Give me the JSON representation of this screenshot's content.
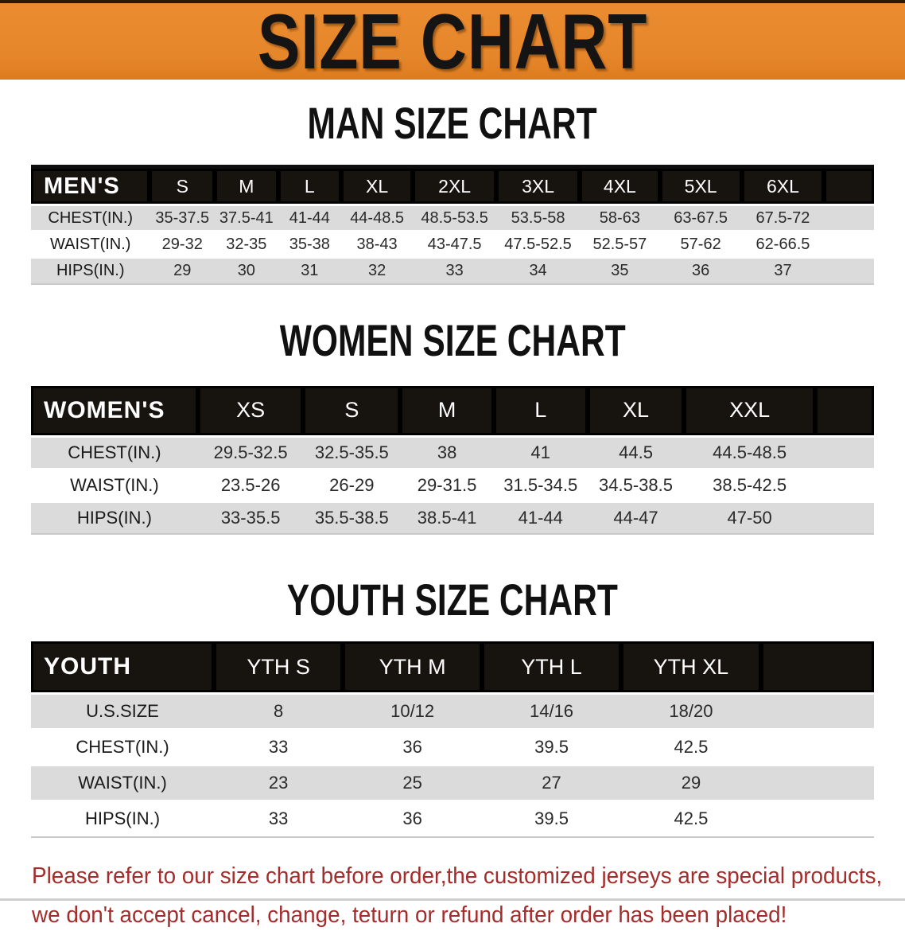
{
  "banner": {
    "title": "SIZE CHART"
  },
  "sections": [
    {
      "heading": "MAN SIZE CHART",
      "table": {
        "label_header": "MEN'S",
        "columns": [
          "S",
          "M",
          "L",
          "XL",
          "2XL",
          "3XL",
          "4XL",
          "5XL",
          "6XL"
        ],
        "rows": [
          {
            "label": "CHEST(IN.)",
            "values": [
              "35-37.5",
              "37.5-41",
              "41-44",
              "44-48.5",
              "48.5-53.5",
              "53.5-58",
              "58-63",
              "63-67.5",
              "67.5-72"
            ]
          },
          {
            "label": "WAIST(IN.)",
            "values": [
              "29-32",
              "32-35",
              "35-38",
              "38-43",
              "43-47.5",
              "47.5-52.5",
              "52.5-57",
              "57-62",
              "62-66.5"
            ]
          },
          {
            "label": "HIPS(IN.)",
            "values": [
              "29",
              "30",
              "31",
              "32",
              "33",
              "34",
              "35",
              "36",
              "37"
            ]
          }
        ]
      }
    },
    {
      "heading": "WOMEN SIZE CHART",
      "table": {
        "label_header": "WOMEN'S",
        "columns": [
          "XS",
          "S",
          "M",
          "L",
          "XL",
          "XXL"
        ],
        "rows": [
          {
            "label": "CHEST(IN.)",
            "values": [
              "29.5-32.5",
              "32.5-35.5",
              "38",
              "41",
              "44.5",
              "44.5-48.5"
            ]
          },
          {
            "label": "WAIST(IN.)",
            "values": [
              "23.5-26",
              "26-29",
              "29-31.5",
              "31.5-34.5",
              "34.5-38.5",
              "38.5-42.5"
            ]
          },
          {
            "label": "HIPS(IN.)",
            "values": [
              "33-35.5",
              "35.5-38.5",
              "38.5-41",
              "41-44",
              "44-47",
              "47-50"
            ]
          }
        ]
      }
    },
    {
      "heading": "YOUTH SIZE CHART",
      "table": {
        "label_header": "YOUTH",
        "columns": [
          "YTH S",
          "YTH M",
          "YTH L",
          "YTH XL"
        ],
        "rows": [
          {
            "label": "U.S.SIZE",
            "values": [
              "8",
              "10/12",
              "14/16",
              "18/20"
            ]
          },
          {
            "label": "CHEST(IN.)",
            "values": [
              "33",
              "36",
              "39.5",
              "42.5"
            ]
          },
          {
            "label": "WAIST(IN.)",
            "values": [
              "23",
              "25",
              "27",
              "29"
            ]
          },
          {
            "label": "HIPS(IN.)",
            "values": [
              "33",
              "36",
              "39.5",
              "42.5"
            ]
          }
        ]
      }
    }
  ],
  "disclaimer": {
    "line1": "Please refer to our size chart before order,the customized jerseys are special products,",
    "line2": "we don't accept cancel, change, teturn or refund after order has been placed!"
  },
  "colors": {
    "banner_orange": "#E6862B",
    "table_header_black": "#17130F",
    "row_gray": "#DBDBDB",
    "disclaimer_red": "#A32C2C"
  }
}
